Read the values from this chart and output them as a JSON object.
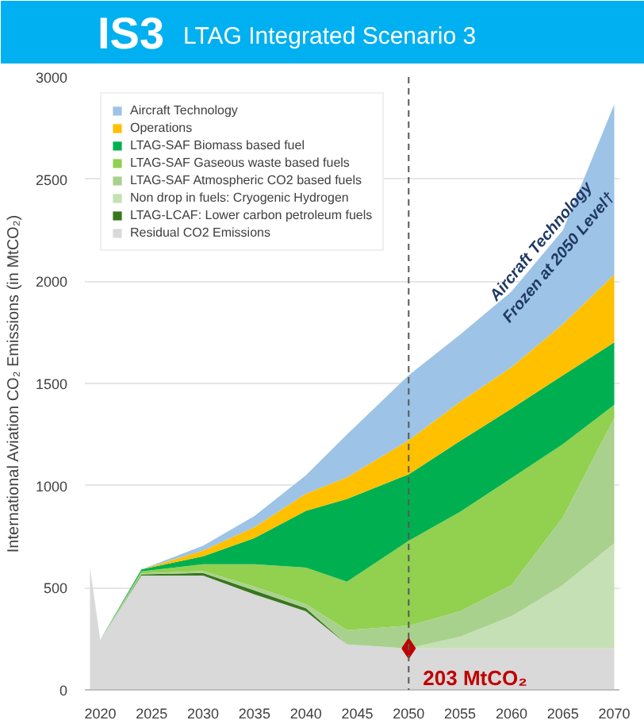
{
  "chart_data": {
    "type": "area",
    "title": "IS3",
    "subtitle": "LTAG Integrated Scenario 3",
    "ylabel": "International Aviation CO₂ Emissions (in MtCO₂)",
    "stacked": true,
    "x": [
      2019,
      2020,
      2024,
      2030,
      2035,
      2040,
      2044,
      2050,
      2055,
      2060,
      2065,
      2070
    ],
    "series": [
      {
        "name": "Residual CO2 Emissions",
        "color": "#d9d9d9",
        "values": [
          600,
          245,
          560,
          560,
          467,
          385,
          222,
          203,
          203,
          203,
          203,
          203
        ]
      },
      {
        "name": "LTAG-LCAF: Lower carbon petroleum fuels",
        "color": "#38761d",
        "values": [
          0,
          0,
          5,
          12,
          20,
          15,
          0,
          0,
          0,
          0,
          0,
          0
        ]
      },
      {
        "name": "Non drop in fuels: Cryogenic Hydrogen",
        "color": "#c5e0b4",
        "values": [
          0,
          0,
          0,
          0,
          0,
          0,
          0,
          0,
          57,
          157,
          310,
          515
        ]
      },
      {
        "name": "LTAG-SAF Atmospheric CO2 based fuels",
        "color": "#a9d18e",
        "values": [
          0,
          0,
          5,
          10,
          18,
          20,
          70,
          111,
          125,
          153,
          332,
          613
        ]
      },
      {
        "name": "LTAG-SAF Gaseous waste based fuels",
        "color": "#92d050",
        "values": [
          0,
          0,
          10,
          33,
          110,
          178,
          237,
          416,
          486,
          524,
          358,
          64
        ]
      },
      {
        "name": "LTAG-SAF Biomass based fuel",
        "color": "#00b050",
        "values": [
          0,
          0,
          10,
          39,
          128,
          278,
          406,
          325,
          347,
          340,
          337,
          306
        ]
      },
      {
        "name": "Operations",
        "color": "#ffc000",
        "values": [
          0,
          0,
          0,
          28,
          54,
          84,
          105,
          167,
          192,
          203,
          250,
          332
        ]
      },
      {
        "name": "Aircraft Technology",
        "color": "#9dc3e6",
        "values": [
          0,
          0,
          0,
          23,
          54,
          90,
          210,
          318,
          329,
          370,
          460,
          833
        ]
      },
      {
        "type": "scatter",
        "marker": "diamond",
        "color": "#c00000",
        "x": [
          2050
        ],
        "values": [
          203
        ]
      }
    ],
    "xlim": [
      2018.5,
      2070.5
    ],
    "xticks": [
      2020,
      2025,
      2030,
      2035,
      2040,
      2045,
      2050,
      2055,
      2060,
      2065,
      2070
    ],
    "ylim": [
      0,
      3000
    ],
    "yticks": [
      0,
      500,
      1000,
      1500,
      2000,
      2500,
      3000
    ],
    "ref_lines": [
      {
        "axis": "x",
        "value": 2050,
        "color": "#595959",
        "line_style": "dashed"
      }
    ],
    "annotations": [
      "Aircraft Technology",
      "Frozen at 2050 Level†",
      {
        "text": "203 MtCO₂",
        "x": 2050,
        "y": 203
      }
    ],
    "grid": "y",
    "legend": "top left"
  }
}
